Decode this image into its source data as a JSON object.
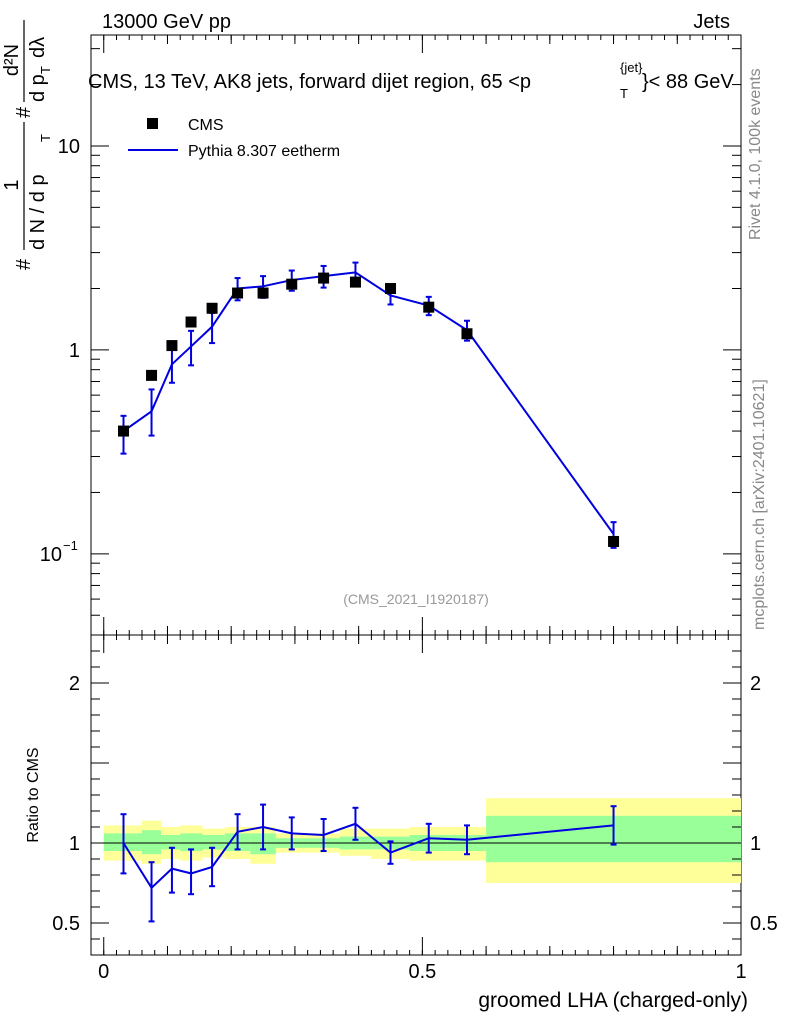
{
  "header": {
    "left": "13000 GeV pp",
    "right": "Jets"
  },
  "title": "CMS, 13 TeV, AK8 jets, forward dijet region, 65 <p",
  "title_sup": "{jet}",
  "title_sub": "T",
  "title_end": "}< 88 GeV",
  "side_label_top": "Rivet 4.1.0,  100k events",
  "side_label_bottom": "mcplots.cern.ch [arXiv:2401.10621]",
  "analysis_id": "(CMS_2021_I1920187)",
  "y_label_main": {
    "frac_num": "1",
    "frac_den": "d N / d p",
    "den_sub": "T",
    "hash": "#",
    "deriv_num": "d²N",
    "deriv_den": "d p",
    "deriv_sub": "T",
    "deriv_tail": "dλ"
  },
  "y_label_ratio": "Ratio to CMS",
  "x_label": "groomed LHA (charged-only)",
  "colors": {
    "mc": "#0000e0",
    "band_inner": "#99ff99",
    "band_outer": "#ffff99",
    "data": "#000000"
  },
  "legend": {
    "data_label": "CMS",
    "mc_label": "Pythia 8.307 eetherm"
  },
  "chart_data": {
    "type": "line",
    "xlim": [
      -0.02,
      1.0
    ],
    "main": {
      "yscale": "log",
      "ylim": [
        0.04,
        35
      ],
      "yticks": [
        {
          "value": 0.1,
          "base": "10",
          "exp": "−1"
        },
        {
          "value": 1,
          "label": "1"
        },
        {
          "value": 10,
          "label": "10"
        }
      ]
    },
    "ratio": {
      "ylim": [
        0.3,
        2.3
      ],
      "yticks": [
        {
          "value": 0.5,
          "label": "0.5"
        },
        {
          "value": 1,
          "label": "1"
        },
        {
          "value": 2,
          "label": "2"
        }
      ]
    },
    "xticks": [
      {
        "value": 0,
        "label": "0"
      },
      {
        "value": 0.5,
        "label": "0.5"
      },
      {
        "value": 1,
        "label": "1"
      }
    ],
    "bins": [
      {
        "lo": 0.0,
        "hi": 0.06,
        "x": 0.031,
        "data": 0.4,
        "mc": 0.4,
        "mc_err_lo": 0.09,
        "mc_err_hi": 0.075,
        "ratio": 1.0,
        "ratio_err_lo": 0.19,
        "ratio_err_hi": 0.18,
        "band_in": [
          0.95,
          1.06
        ],
        "band_out": [
          0.89,
          1.11
        ]
      },
      {
        "lo": 0.06,
        "hi": 0.09,
        "x": 0.075,
        "data": 0.75,
        "mc": 0.5,
        "mc_err_lo": 0.12,
        "mc_err_hi": 0.14,
        "ratio": 0.72,
        "ratio_err_lo": 0.21,
        "ratio_err_hi": 0.16,
        "band_in": [
          0.93,
          1.08
        ],
        "band_out": [
          0.87,
          1.14
        ]
      },
      {
        "lo": 0.09,
        "hi": 0.12,
        "x": 0.107,
        "data": 1.05,
        "mc": 0.85,
        "mc_err_lo": 0.16,
        "mc_err_hi": 0.16,
        "ratio": 0.84,
        "ratio_err_lo": 0.15,
        "ratio_err_hi": 0.13,
        "band_in": [
          0.96,
          1.05
        ],
        "band_out": [
          0.9,
          1.1
        ]
      },
      {
        "lo": 0.12,
        "hi": 0.155,
        "x": 0.137,
        "data": 1.37,
        "mc": 1.04,
        "mc_err_lo": 0.2,
        "mc_err_hi": 0.2,
        "ratio": 0.81,
        "ratio_err_lo": 0.13,
        "ratio_err_hi": 0.15,
        "band_in": [
          0.95,
          1.06
        ],
        "band_out": [
          0.89,
          1.11
        ]
      },
      {
        "lo": 0.155,
        "hi": 0.19,
        "x": 0.17,
        "data": 1.6,
        "mc": 1.3,
        "mc_err_lo": 0.22,
        "mc_err_hi": 0.22,
        "ratio": 0.85,
        "ratio_err_lo": 0.12,
        "ratio_err_hi": 0.12,
        "band_in": [
          0.96,
          1.05
        ],
        "band_out": [
          0.91,
          1.09
        ]
      },
      {
        "lo": 0.19,
        "hi": 0.23,
        "x": 0.21,
        "data": 1.9,
        "mc": 2.0,
        "mc_err_lo": 0.25,
        "mc_err_hi": 0.25,
        "ratio": 1.07,
        "ratio_err_lo": 0.11,
        "ratio_err_hi": 0.11,
        "band_in": [
          0.95,
          1.06
        ],
        "band_out": [
          0.9,
          1.1
        ]
      },
      {
        "lo": 0.23,
        "hi": 0.27,
        "x": 0.25,
        "data": 1.9,
        "mc": 2.05,
        "mc_err_lo": 0.25,
        "mc_err_hi": 0.25,
        "ratio": 1.1,
        "ratio_err_lo": 0.14,
        "ratio_err_hi": 0.14,
        "band_in": [
          0.93,
          1.06
        ],
        "band_out": [
          0.87,
          1.1
        ]
      },
      {
        "lo": 0.27,
        "hi": 0.32,
        "x": 0.295,
        "data": 2.1,
        "mc": 2.2,
        "mc_err_lo": 0.25,
        "mc_err_hi": 0.25,
        "ratio": 1.06,
        "ratio_err_lo": 0.1,
        "ratio_err_hi": 0.1,
        "band_in": [
          0.97,
          1.03
        ],
        "band_out": [
          0.94,
          1.06
        ]
      },
      {
        "lo": 0.32,
        "hi": 0.37,
        "x": 0.345,
        "data": 2.25,
        "mc": 2.3,
        "mc_err_lo": 0.28,
        "mc_err_hi": 0.28,
        "ratio": 1.05,
        "ratio_err_lo": 0.1,
        "ratio_err_hi": 0.1,
        "band_in": [
          0.97,
          1.03
        ],
        "band_out": [
          0.94,
          1.06
        ]
      },
      {
        "lo": 0.37,
        "hi": 0.42,
        "x": 0.395,
        "data": 2.15,
        "mc": 2.4,
        "mc_err_lo": 0.28,
        "mc_err_hi": 0.28,
        "ratio": 1.12,
        "ratio_err_lo": 0.1,
        "ratio_err_hi": 0.1,
        "band_in": [
          0.96,
          1.04
        ],
        "band_out": [
          0.92,
          1.09
        ]
      },
      {
        "lo": 0.42,
        "hi": 0.48,
        "x": 0.45,
        "data": 2.0,
        "mc": 1.85,
        "mc_err_lo": 0.18,
        "mc_err_hi": 0.18,
        "ratio": 0.94,
        "ratio_err_lo": 0.07,
        "ratio_err_hi": 0.07,
        "band_in": [
          0.96,
          1.04
        ],
        "band_out": [
          0.9,
          1.09
        ]
      },
      {
        "lo": 0.48,
        "hi": 0.54,
        "x": 0.51,
        "data": 1.62,
        "mc": 1.65,
        "mc_err_lo": 0.17,
        "mc_err_hi": 0.17,
        "ratio": 1.03,
        "ratio_err_lo": 0.09,
        "ratio_err_hi": 0.09,
        "band_in": [
          0.95,
          1.05
        ],
        "band_out": [
          0.89,
          1.1
        ]
      },
      {
        "lo": 0.54,
        "hi": 0.6,
        "x": 0.57,
        "data": 1.2,
        "mc": 1.25,
        "mc_err_lo": 0.14,
        "mc_err_hi": 0.14,
        "ratio": 1.02,
        "ratio_err_lo": 0.09,
        "ratio_err_hi": 0.09,
        "band_in": [
          0.95,
          1.05
        ],
        "band_out": [
          0.89,
          1.1
        ]
      },
      {
        "lo": 0.6,
        "hi": 1.0,
        "x": 0.8,
        "data": 0.115,
        "mc": 0.125,
        "mc_err_lo": 0.018,
        "mc_err_hi": 0.018,
        "ratio": 1.11,
        "ratio_err_lo": 0.12,
        "ratio_err_hi": 0.12,
        "band_in": [
          0.88,
          1.17
        ],
        "band_out": [
          0.75,
          1.28
        ]
      }
    ]
  }
}
